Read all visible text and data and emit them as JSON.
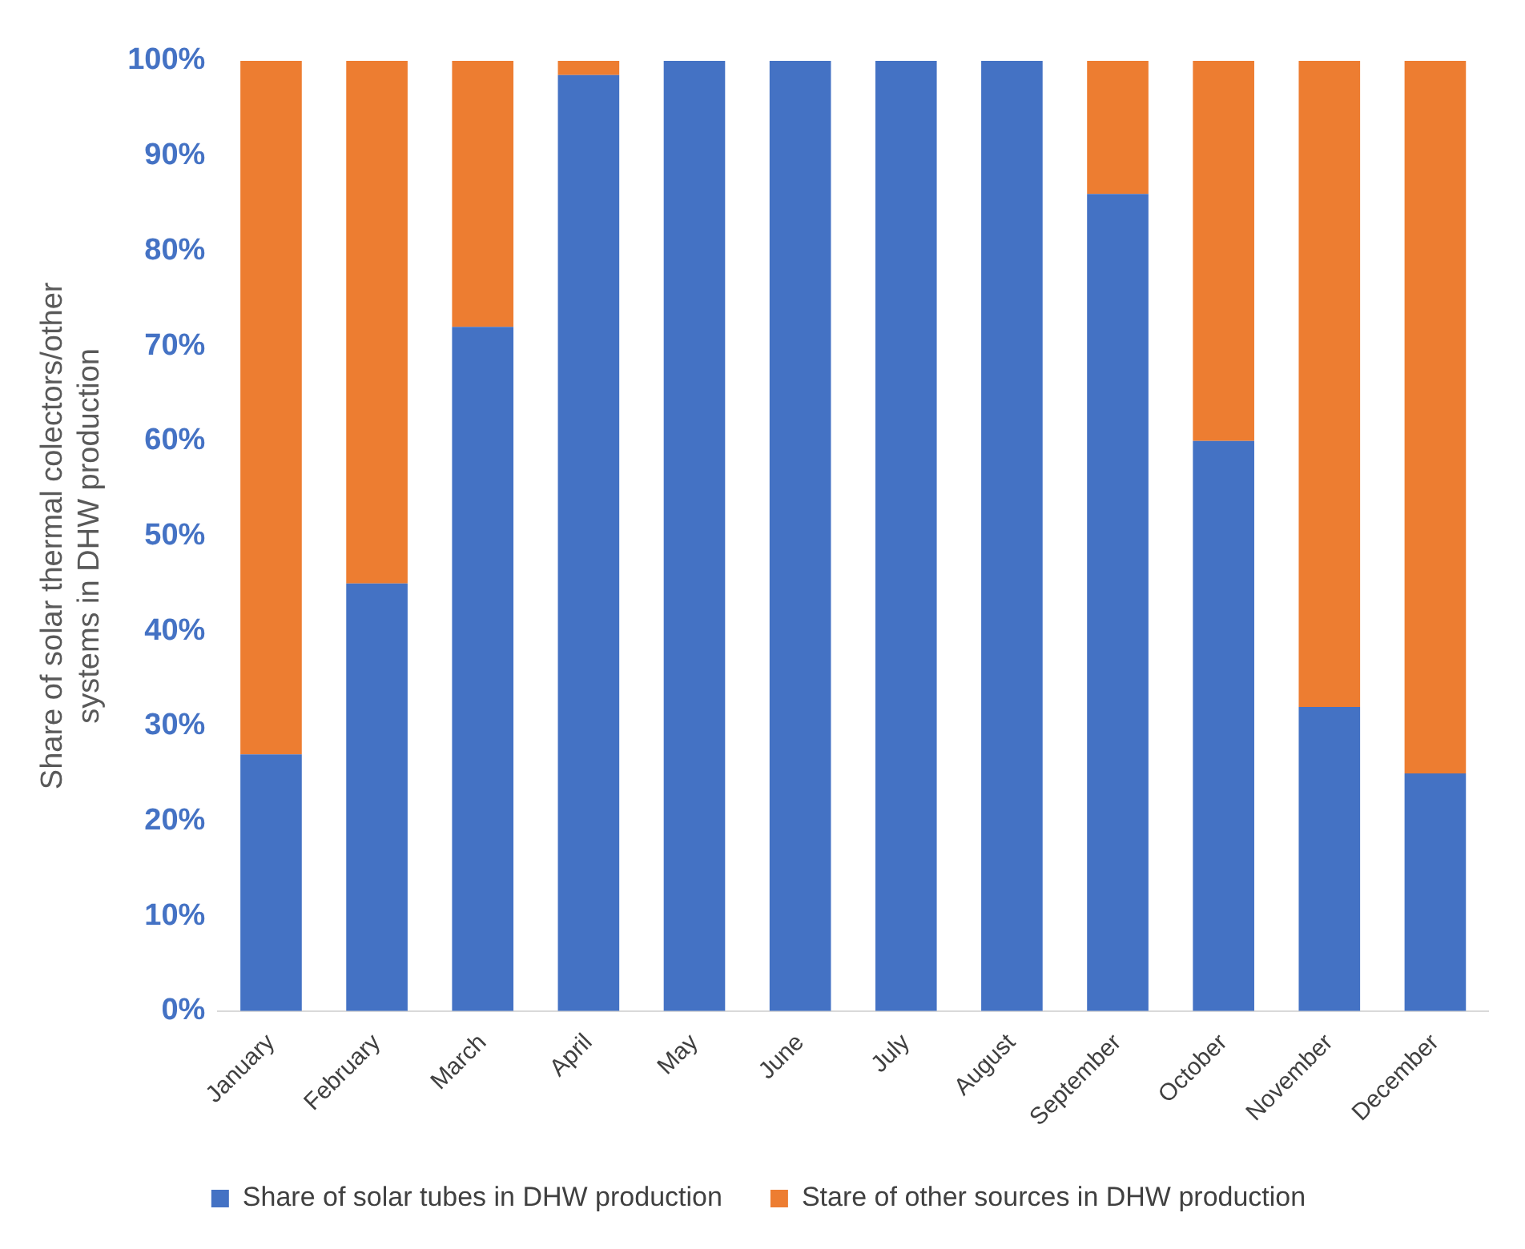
{
  "chart_data": {
    "type": "bar",
    "stacked": true,
    "ylabel": "Share of solar thermal colectors/other systems in DHW production",
    "categories": [
      "January",
      "February",
      "March",
      "April",
      "May",
      "June",
      "July",
      "August",
      "September",
      "October",
      "November",
      "December"
    ],
    "series": [
      {
        "name": "Share of solar tubes in DHW production",
        "color": "#4472c4",
        "values": [
          27,
          45,
          72,
          98.5,
          100,
          100,
          100,
          100,
          86,
          60,
          32,
          25
        ]
      },
      {
        "name": "Stare of other sources in DHW production",
        "color": "#ed7d31",
        "values": [
          73,
          55,
          28,
          1.5,
          0,
          0,
          0,
          0,
          14,
          40,
          68,
          75
        ]
      }
    ],
    "ylim": [
      0,
      100
    ],
    "yticks": [
      {
        "value": 0,
        "label": "0%"
      },
      {
        "value": 10,
        "label": "10%"
      },
      {
        "value": 20,
        "label": "20%"
      },
      {
        "value": 30,
        "label": "30%"
      },
      {
        "value": 40,
        "label": "40%"
      },
      {
        "value": 50,
        "label": "50%"
      },
      {
        "value": 60,
        "label": "60%"
      },
      {
        "value": 70,
        "label": "70%"
      },
      {
        "value": 80,
        "label": "80%"
      },
      {
        "value": 90,
        "label": "90%"
      },
      {
        "value": 100,
        "label": "100%"
      }
    ],
    "grid": false,
    "legend": "bottom"
  }
}
